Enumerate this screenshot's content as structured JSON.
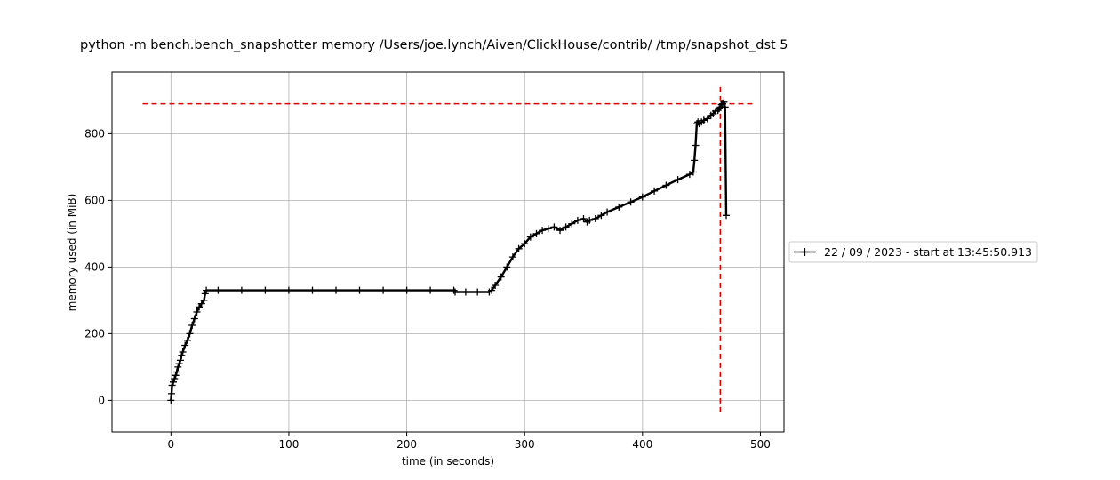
{
  "chart_data": {
    "type": "line",
    "title": "python -m bench.bench_snapshotter memory /Users/joe.lynch/Aiven/ClickHouse/contrib/ /tmp/snapshot_dst 5",
    "xlabel": "time (in seconds)",
    "ylabel": "memory used (in MiB)",
    "xlim": [
      -50,
      520
    ],
    "ylim": [
      -95,
      985
    ],
    "x_ticks": [
      0,
      100,
      200,
      300,
      400,
      500
    ],
    "y_ticks": [
      0,
      200,
      400,
      600,
      800
    ],
    "x_tick_labels": [
      "0",
      "100",
      "200",
      "300",
      "400",
      "500"
    ],
    "y_tick_labels": [
      "0",
      "200",
      "400",
      "600",
      "800"
    ],
    "grid": true,
    "legend_position": "outside right",
    "series": [
      {
        "name": "22 / 09 / 2023 - start at 13:45:50.913",
        "color": "#000000",
        "marker": "plus",
        "x": [
          0,
          0.5,
          1,
          2,
          3,
          4,
          5,
          6,
          7,
          8,
          9,
          10,
          12,
          14,
          16,
          18,
          20,
          22,
          24,
          26,
          28,
          29,
          30,
          40,
          60,
          80,
          100,
          120,
          140,
          160,
          180,
          200,
          220,
          240,
          241,
          250,
          260,
          270,
          272,
          275,
          280,
          285,
          290,
          295,
          300,
          305,
          310,
          315,
          320,
          325,
          330,
          335,
          340,
          345,
          350,
          353,
          355,
          360,
          365,
          370,
          380,
          390,
          400,
          410,
          420,
          430,
          440,
          443,
          444,
          445,
          446,
          447,
          448,
          450,
          452,
          455,
          458,
          460,
          462,
          464,
          465,
          466,
          467,
          468,
          469,
          470,
          471
        ],
        "y": [
          0,
          20,
          45,
          55,
          65,
          75,
          85,
          100,
          110,
          120,
          135,
          145,
          165,
          180,
          200,
          225,
          245,
          265,
          280,
          290,
          300,
          320,
          330,
          330,
          330,
          330,
          330,
          330,
          330,
          330,
          330,
          330,
          330,
          330,
          325,
          325,
          325,
          325,
          330,
          345,
          370,
          400,
          430,
          455,
          470,
          490,
          500,
          510,
          515,
          520,
          510,
          520,
          530,
          540,
          545,
          535,
          540,
          545,
          555,
          565,
          580,
          595,
          610,
          628,
          645,
          662,
          678,
          685,
          720,
          765,
          830,
          835,
          830,
          835,
          840,
          845,
          855,
          860,
          868,
          870,
          875,
          880,
          888,
          890,
          895,
          880,
          555
        ]
      }
    ],
    "reference_lines": {
      "horizontal_y": 890,
      "horizontal_x_range": [
        -24,
        495
      ],
      "vertical_x": 466,
      "vertical_y_range": [
        -45,
        940
      ],
      "color": "#dd0000",
      "style": "dashed"
    }
  }
}
